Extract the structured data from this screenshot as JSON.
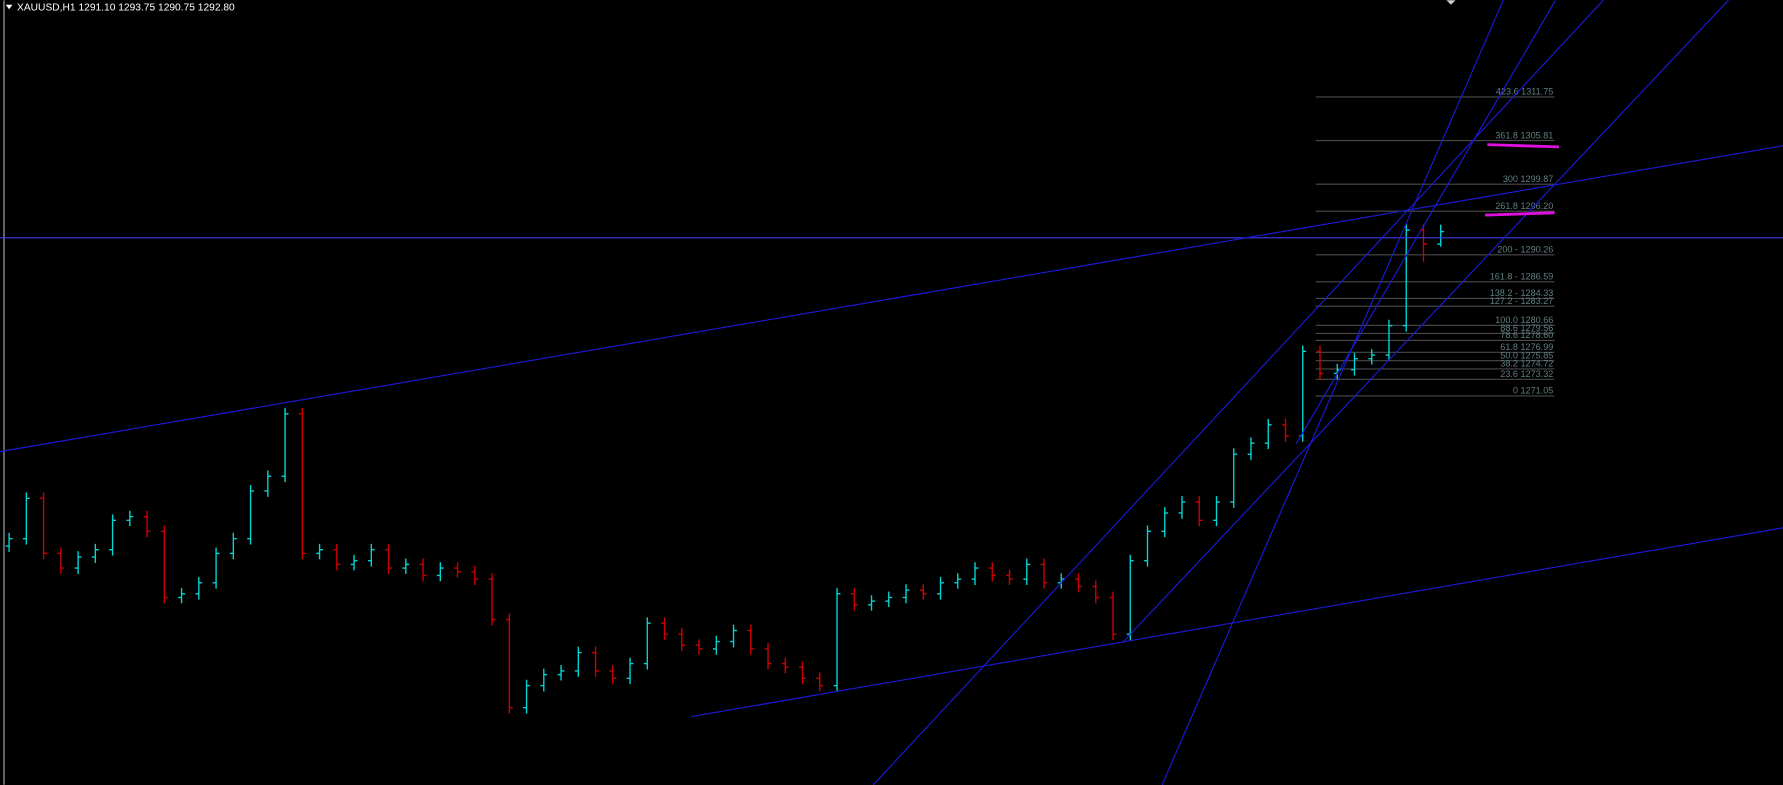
{
  "header": {
    "symbol": "XAUUSD,H1",
    "quote": "1291.10 1293.75 1290.75 1292.80"
  },
  "price_chart": {
    "ylim": [
      1217.5,
      1324.3
    ],
    "bull_color": "#00d8d8",
    "bear_color": "#d00000",
    "open": [
      1250.0,
      1251.0,
      1256.5,
      1249.0,
      1247.0,
      1248.5,
      1249.5,
      1253.5,
      1254.0,
      1252.0,
      1243.0,
      1243.5,
      1245.0,
      1249.0,
      1251.0,
      1257.5,
      1259.5,
      1268.0,
      1249.0,
      1249.5,
      1247.5,
      1248.0,
      1249.5,
      1247.0,
      1247.5,
      1246.0,
      1247.0,
      1246.5,
      1245.5,
      1240.0,
      1228.0,
      1231.0,
      1232.5,
      1233.0,
      1235.5,
      1233.0,
      1232.0,
      1234.0,
      1239.5,
      1238.0,
      1236.5,
      1236.0,
      1237.0,
      1238.5,
      1236.0,
      1234.0,
      1233.5,
      1232.0,
      1231.0,
      1243.5,
      1242.0,
      1242.5,
      1243.0,
      1244.0,
      1243.5,
      1245.0,
      1245.5,
      1247.0,
      1246.0,
      1245.5,
      1247.5,
      1245.0,
      1245.5,
      1244.5,
      1243.0,
      1238.0,
      1248.0,
      1252.0,
      1254.5,
      1256.0,
      1253.5,
      1256.0,
      1262.5,
      1264.0,
      1266.5,
      1265.0,
      1276.5,
      1273.5,
      1274.0,
      1275.5,
      1276.0,
      1280.0,
      1293.0,
      1291.1
    ],
    "high": [
      1251.8,
      1257.3,
      1257.3,
      1249.8,
      1249.3,
      1250.3,
      1254.3,
      1254.8,
      1254.8,
      1252.8,
      1244.3,
      1245.8,
      1249.8,
      1251.8,
      1258.3,
      1260.3,
      1268.8,
      1268.8,
      1250.3,
      1250.3,
      1248.8,
      1250.3,
      1250.3,
      1248.3,
      1248.3,
      1247.8,
      1247.8,
      1247.3,
      1246.3,
      1240.8,
      1231.8,
      1233.3,
      1233.8,
      1236.3,
      1236.3,
      1233.8,
      1234.8,
      1240.3,
      1240.3,
      1238.8,
      1237.3,
      1237.8,
      1239.3,
      1239.3,
      1236.8,
      1234.8,
      1234.3,
      1232.8,
      1244.3,
      1244.3,
      1243.3,
      1243.8,
      1244.8,
      1244.8,
      1245.8,
      1246.3,
      1247.8,
      1247.8,
      1246.8,
      1248.3,
      1248.3,
      1246.3,
      1246.3,
      1245.3,
      1243.8,
      1248.8,
      1252.8,
      1255.3,
      1256.8,
      1256.8,
      1256.8,
      1263.3,
      1264.8,
      1267.3,
      1267.3,
      1277.3,
      1277.3,
      1274.8,
      1276.3,
      1276.8,
      1280.8,
      1293.8,
      1293.8,
      1293.75
    ],
    "low": [
      1249.2,
      1250.2,
      1248.2,
      1246.2,
      1246.2,
      1247.7,
      1248.7,
      1252.7,
      1251.2,
      1242.2,
      1242.2,
      1242.7,
      1244.2,
      1248.2,
      1250.2,
      1256.7,
      1258.7,
      1248.2,
      1248.2,
      1246.7,
      1246.7,
      1247.2,
      1246.2,
      1246.2,
      1245.2,
      1245.2,
      1245.7,
      1244.7,
      1239.2,
      1227.2,
      1227.2,
      1230.2,
      1231.7,
      1232.2,
      1232.2,
      1231.2,
      1231.2,
      1233.2,
      1237.2,
      1235.7,
      1235.2,
      1235.2,
      1236.2,
      1235.2,
      1233.2,
      1232.7,
      1231.2,
      1230.2,
      1230.2,
      1241.2,
      1241.2,
      1241.7,
      1242.2,
      1242.7,
      1242.7,
      1244.2,
      1244.7,
      1245.2,
      1244.7,
      1244.7,
      1244.2,
      1244.2,
      1243.7,
      1242.2,
      1237.2,
      1237.2,
      1247.2,
      1251.2,
      1253.7,
      1252.7,
      1252.7,
      1255.2,
      1261.7,
      1263.2,
      1264.2,
      1264.2,
      1272.7,
      1272.7,
      1273.2,
      1274.7,
      1275.2,
      1279.2,
      1288.7,
      1290.75
    ],
    "close": [
      1251.0,
      1256.5,
      1249.0,
      1247.0,
      1248.5,
      1249.5,
      1253.5,
      1254.0,
      1252.0,
      1243.0,
      1243.5,
      1245.0,
      1249.0,
      1251.0,
      1257.5,
      1259.5,
      1268.0,
      1249.0,
      1249.5,
      1247.5,
      1248.0,
      1249.5,
      1247.0,
      1247.5,
      1246.0,
      1247.0,
      1246.5,
      1245.5,
      1240.0,
      1228.0,
      1231.0,
      1232.5,
      1233.0,
      1235.5,
      1233.0,
      1232.0,
      1234.0,
      1239.5,
      1238.0,
      1236.5,
      1236.0,
      1237.0,
      1238.5,
      1236.0,
      1234.0,
      1233.5,
      1232.0,
      1231.0,
      1243.5,
      1242.0,
      1242.5,
      1243.0,
      1244.0,
      1243.5,
      1245.0,
      1245.5,
      1247.0,
      1246.0,
      1245.5,
      1247.5,
      1245.0,
      1245.5,
      1244.5,
      1243.0,
      1238.0,
      1248.0,
      1252.0,
      1254.5,
      1256.0,
      1253.5,
      1256.0,
      1262.5,
      1264.0,
      1266.5,
      1265.0,
      1276.5,
      1273.5,
      1274.0,
      1275.5,
      1276.0,
      1280.0,
      1293.0,
      1291.1,
      1292.8
    ]
  },
  "fibo": [
    {
      "label": "423.6 1311.75",
      "price": 1311.75
    },
    {
      "label": "361.8 1305.81",
      "price": 1305.81
    },
    {
      "label": "300 1299.87",
      "price": 1299.87
    },
    {
      "label": "261.8 1296.20",
      "price": 1296.2
    },
    {
      "label": "200 - 1290.26",
      "price": 1290.26
    },
    {
      "label": "161.8 - 1286.59",
      "price": 1286.59
    },
    {
      "label": "138.2 - 1284.33",
      "price": 1284.33
    },
    {
      "label": "127.2 - 1283.27",
      "price": 1283.27
    },
    {
      "label": "100.0 1280.66",
      "price": 1280.66
    },
    {
      "label": "88.6 1279.56",
      "price": 1279.56
    },
    {
      "label": "78.6 1278.60",
      "price": 1278.6
    },
    {
      "label": "61.8 1276.99",
      "price": 1276.99
    },
    {
      "label": "50.0 1275.85",
      "price": 1275.85
    },
    {
      "label": "38.2 1274.72",
      "price": 1274.72
    },
    {
      "label": "23.6 1273.32",
      "price": 1273.32
    },
    {
      "label": "0 1271.05",
      "price": 1271.05
    }
  ]
}
